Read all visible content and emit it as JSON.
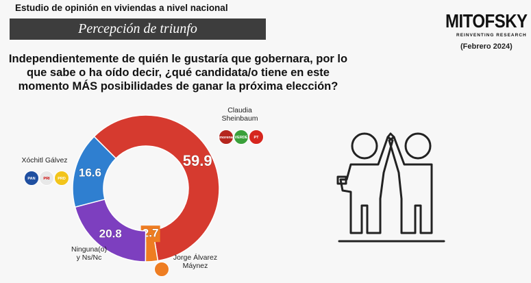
{
  "header": {
    "title": "Estudio de opinión en viviendas a nivel nacional",
    "banner": "Percepción de triunfo",
    "brand": "MITOFSKY",
    "tagline": "REINVENTING RESEARCH",
    "date": "(Febrero 2024)"
  },
  "question": "Independientemente de quién le gustaría que gobernara, por lo que sabe o ha oído decir, ¿qué candidata/o tiene en este momento MÁS posibilidades de ganar la próxima elección?",
  "party_logos": [
    [
      "morena",
      "VERDE",
      "PT"
    ],
    [
      "PAN",
      "PRI",
      "PRD"
    ]
  ],
  "chart_data": {
    "type": "donut",
    "categories": [
      "Claudia Sheinbaum",
      "Jorge Álvarez Máynez",
      "Ninguna(o) y Ns/Nc",
      "Xóchitl Gálvez"
    ],
    "values": [
      59.9,
      2.7,
      20.8,
      16.6
    ],
    "colors": [
      "#d63a2f",
      "#ee7d22",
      "#7d3fbf",
      "#2f7fd0"
    ]
  }
}
